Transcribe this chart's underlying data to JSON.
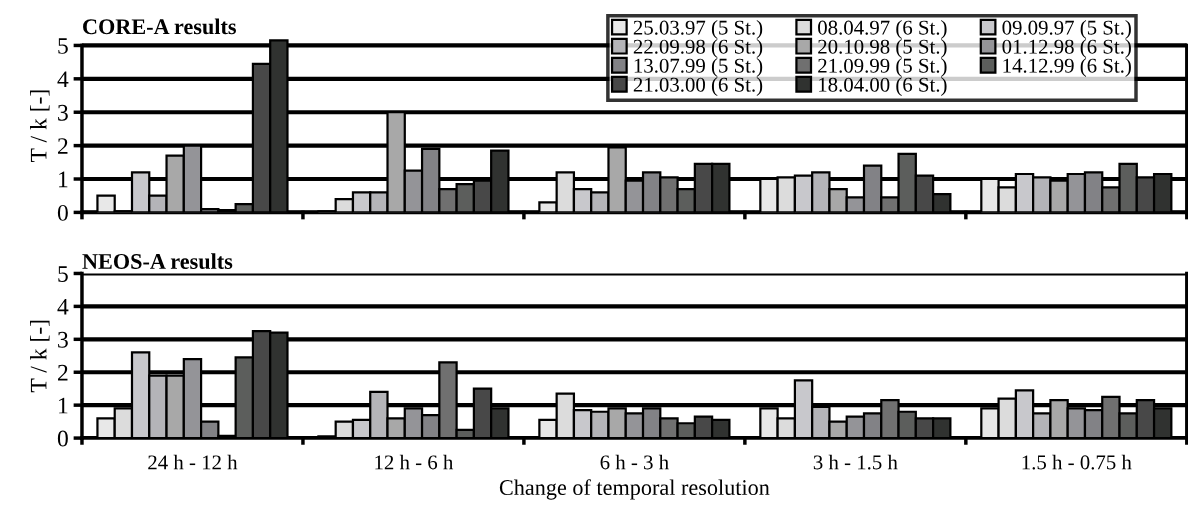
{
  "chart_data": [
    {
      "type": "bar",
      "title": "CORE-A results",
      "ylabel": "T / k [-]",
      "categories": [
        null,
        null,
        null,
        null,
        null
      ],
      "ylim": [
        0,
        5.2
      ],
      "yticks": [
        0,
        1,
        2,
        3,
        4,
        5
      ],
      "grid": "y",
      "legend": "top right",
      "series": [
        {
          "name": "25.03.97 (5 St.)",
          "color": "#e8e8e8",
          "values": [
            0.5,
            0.03,
            0.3,
            1.0,
            1.0
          ]
        },
        {
          "name": "08.04.97 (6 St.)",
          "color": "#dcdcdc",
          "values": [
            0.03,
            0.4,
            1.2,
            1.05,
            0.75
          ]
        },
        {
          "name": "09.09.97 (5 St.)",
          "color": "#c8c8cc",
          "values": [
            1.2,
            0.6,
            0.7,
            1.1,
            1.15
          ]
        },
        {
          "name": "22.09.98 (6 St.)",
          "color": "#b4b4b8",
          "values": [
            0.5,
            0.6,
            0.6,
            1.2,
            1.05
          ]
        },
        {
          "name": "20.10.98 (5 St.)",
          "color": "#a8a8a8",
          "values": [
            1.7,
            3.0,
            1.95,
            0.7,
            0.95
          ]
        },
        {
          "name": "01.12.98 (6 St.)",
          "color": "#949498",
          "values": [
            2.0,
            1.25,
            0.95,
            0.45,
            1.15
          ]
        },
        {
          "name": "13.07.99 (5 St.)",
          "color": "#828286",
          "values": [
            0.1,
            1.9,
            1.2,
            1.4,
            1.2
          ]
        },
        {
          "name": "21.09.99 (5 St.)",
          "color": "#707070",
          "values": [
            0.07,
            0.7,
            1.05,
            0.45,
            0.75
          ]
        },
        {
          "name": "14.12.99 (6 St.)",
          "color": "#5c5e5c",
          "values": [
            0.25,
            0.85,
            0.7,
            1.75,
            1.45
          ]
        },
        {
          "name": "21.03.00 (6 St.)",
          "color": "#484848",
          "values": [
            4.45,
            0.95,
            1.45,
            1.1,
            1.05
          ]
        },
        {
          "name": "18.04.00 (6 St.)",
          "color": "#303230",
          "values": [
            5.15,
            1.85,
            1.45,
            0.55,
            1.15
          ]
        }
      ]
    },
    {
      "type": "bar",
      "title": "NEOS-A results",
      "ylabel": "T / k [-]",
      "xlabel": "Change of temporal resolution",
      "categories": [
        "24 h - 12 h",
        "12 h - 6 h",
        "6 h - 3 h",
        "3 h - 1.5 h",
        "1.5 h - 0.75 h"
      ],
      "ylim": [
        0,
        5
      ],
      "yticks": [
        0,
        1,
        2,
        3,
        4,
        5
      ],
      "grid": "y",
      "series": [
        {
          "color": "#e8e8e8",
          "values": [
            0.6,
            0.05,
            0.55,
            0.9,
            0.9
          ]
        },
        {
          "color": "#dcdcdc",
          "values": [
            0.9,
            0.5,
            1.35,
            0.6,
            1.2
          ]
        },
        {
          "color": "#c8c8cc",
          "values": [
            2.6,
            0.55,
            0.85,
            1.75,
            1.45
          ]
        },
        {
          "color": "#b4b4b8",
          "values": [
            1.9,
            1.4,
            0.8,
            0.95,
            0.75
          ]
        },
        {
          "color": "#a8a8a8",
          "values": [
            1.9,
            0.6,
            0.9,
            0.5,
            1.15
          ]
        },
        {
          "color": "#949498",
          "values": [
            2.4,
            0.9,
            0.75,
            0.65,
            0.9
          ]
        },
        {
          "color": "#828286",
          "values": [
            0.5,
            0.7,
            0.9,
            0.75,
            0.85
          ]
        },
        {
          "color": "#707070",
          "values": [
            0.07,
            2.3,
            0.6,
            1.15,
            1.25
          ]
        },
        {
          "color": "#5c5e5c",
          "values": [
            2.45,
            0.25,
            0.45,
            0.8,
            0.75
          ]
        },
        {
          "color": "#484848",
          "values": [
            3.25,
            1.5,
            0.65,
            0.6,
            1.15
          ]
        },
        {
          "color": "#303230",
          "values": [
            3.2,
            0.9,
            0.55,
            0.6,
            0.9
          ]
        }
      ]
    }
  ]
}
